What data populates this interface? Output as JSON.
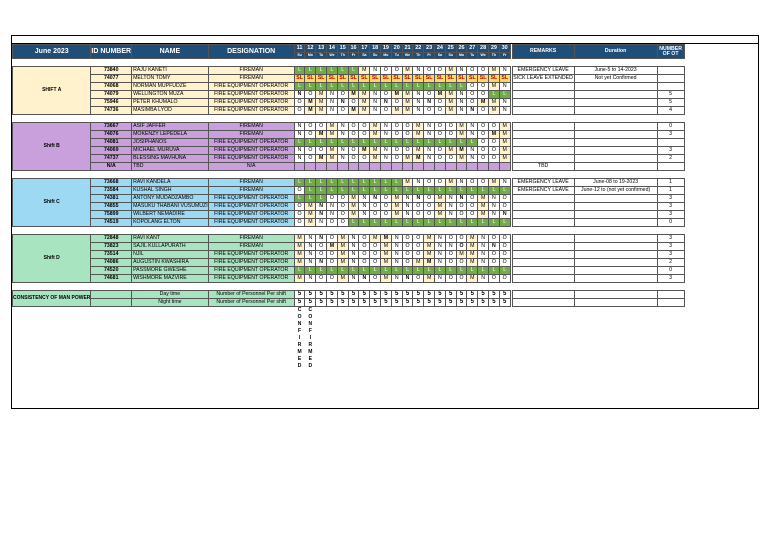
{
  "header": {
    "month": "June 2023",
    "id_col": "ID NUMBER",
    "name_col": "NAME",
    "designation_col": "DESIGNATION",
    "days": [
      "11",
      "12",
      "13",
      "14",
      "15",
      "16",
      "17",
      "18",
      "19",
      "20",
      "21",
      "22",
      "23",
      "24",
      "25",
      "26",
      "27",
      "28",
      "29",
      "30"
    ],
    "weekdays": [
      "Su",
      "Mo",
      "Tu",
      "We",
      "Th",
      "Fr",
      "Sa",
      "Su",
      "Mo",
      "Tu",
      "We",
      "Th",
      "Fr",
      "Sa",
      "Su",
      "Mo",
      "Tu",
      "We",
      "Th",
      "Fr"
    ],
    "remarks_col": "REMARKS",
    "duration_col": "Duration",
    "ot_col": "NUMBER OF OT"
  },
  "groups": [
    {
      "name": "SHIFT A",
      "id_color": "#fff2cc",
      "name_color": "#fff2cc",
      "desig_color": "#fff2cc",
      "label_color": "#fff2cc",
      "rows": [
        {
          "id": "73840",
          "name": "RAJU KANETI",
          "desig": "FIREMAN",
          "codes": [
            "L",
            "L",
            "L",
            "L",
            "L",
            "L",
            "M",
            "N",
            "O",
            "O",
            "M",
            "N",
            "O",
            "O",
            "M",
            "N",
            "O",
            "O",
            "M",
            "N"
          ],
          "remarks": "EMERGENCY LEAVE",
          "duration": "June-5 to 14-2023",
          "ot": ""
        },
        {
          "id": "74077",
          "name": "MELTON TOMY",
          "desig": "FIREMAN",
          "codes": [
            "SL",
            "SL",
            "SL",
            "SL",
            "SL",
            "SL",
            "SL",
            "SL",
            "SL",
            "SL",
            "SL",
            "SL",
            "SL",
            "SL",
            "SL",
            "SL",
            "SL",
            "SL",
            "SL",
            "SL"
          ],
          "remarks": "SICK LEAVE EXTENDED",
          "duration": "Not yet Confirmed",
          "ot": ""
        },
        {
          "id": "74068",
          "name": "NORMAN MUPFUDZE",
          "desig": "FIRE EQUIPMENT OPERATOR",
          "codes": [
            "L",
            "L",
            "L",
            "L",
            "L",
            "L",
            "L",
            "L",
            "L",
            "L",
            "L",
            "L",
            "L",
            "L",
            "L",
            "L",
            "O",
            "O",
            "M",
            "N"
          ],
          "remarks": "",
          "duration": "",
          "ot": ""
        },
        {
          "id": "74079",
          "name": "WELLINGTON MUZA",
          "desig": "FIRE EQUIPMENT OPERATOR",
          "codes": [
            "N",
            "O",
            "M",
            "N",
            "O",
            "M",
            "M",
            "N",
            "O",
            "M",
            "M",
            "N",
            "O",
            "M",
            "M",
            "N",
            "O",
            "O",
            "L",
            "L"
          ],
          "remarks": "",
          "duration": "",
          "ot": "5"
        },
        {
          "id": "75946",
          "name": "PETER KHUMALO",
          "desig": "FIRE EQUIPMENT OPERATOR",
          "codes": [
            "O",
            "M",
            "M",
            "N",
            "N",
            "O",
            "M",
            "N",
            "N",
            "O",
            "M",
            "N",
            "N",
            "O",
            "M",
            "N",
            "O",
            "M",
            "M",
            "N"
          ],
          "remarks": "",
          "duration": "",
          "ot": "5"
        },
        {
          "id": "74736",
          "name": "MASIMBA LYOD",
          "desig": "FIRE EQUIPMENT OPERATOR",
          "codes": [
            "O",
            "M",
            "M",
            "N",
            "O",
            "M",
            "M",
            "N",
            "O",
            "M",
            "M",
            "N",
            "O",
            "O",
            "M",
            "N",
            "N",
            "O",
            "M",
            "N"
          ],
          "remarks": "",
          "duration": "",
          "ot": "4"
        }
      ]
    },
    {
      "name": "Shift B",
      "id_color": "#c9a0dc",
      "name_color": "#c9a0dc",
      "desig_color": "#c9a0dc",
      "label_color": "#c9a0dc",
      "rows": [
        {
          "id": "73667",
          "name": "ASIF JAFFER",
          "desig": "FIREMAN",
          "codes": [
            "N",
            "O",
            "O",
            "M",
            "N",
            "O",
            "O",
            "M",
            "N",
            "O",
            "O",
            "M",
            "N",
            "O",
            "O",
            "M",
            "N",
            "O",
            "O",
            "M"
          ],
          "remarks": "",
          "duration": "",
          "ot": "0"
        },
        {
          "id": "74076",
          "name": "MOKENZY LEPEDELA",
          "desig": "FIREMAN",
          "codes": [
            "N",
            "O",
            "M",
            "M",
            "N",
            "O",
            "O",
            "M",
            "N",
            "O",
            "O",
            "M",
            "N",
            "O",
            "O",
            "M",
            "N",
            "O",
            "M",
            "M"
          ],
          "remarks": "",
          "duration": "",
          "ot": "3"
        },
        {
          "id": "74081",
          "name": "JOSIPHANOS",
          "desig": "FIRE EQUIPMENT OPERATOR",
          "codes": [
            "L",
            "L",
            "L",
            "L",
            "L",
            "L",
            "L",
            "L",
            "L",
            "L",
            "L",
            "L",
            "L",
            "L",
            "L",
            "L",
            "L",
            "O",
            "O",
            "M"
          ],
          "remarks": "",
          "duration": "",
          "ot": ""
        },
        {
          "id": "74069",
          "name": "MICHAEL MURUVA",
          "desig": "FIRE EQUIPMENT OPERATOR",
          "codes": [
            "N",
            "O",
            "O",
            "M",
            "N",
            "O",
            "M",
            "M",
            "N",
            "O",
            "O",
            "M",
            "N",
            "O",
            "M",
            "M",
            "N",
            "O",
            "O",
            "M"
          ],
          "remarks": "",
          "duration": "",
          "ot": "3"
        },
        {
          "id": "74737",
          "name": "BLESSING MAVHUNA",
          "desig": "FIRE EQUIPMENT OPERATOR",
          "codes": [
            "N",
            "O",
            "M",
            "M",
            "N",
            "O",
            "O",
            "M",
            "N",
            "O",
            "M",
            "M",
            "N",
            "O",
            "O",
            "M",
            "N",
            "O",
            "O",
            "M"
          ],
          "remarks": "",
          "duration": "",
          "ot": "2"
        },
        {
          "id": "N/A",
          "name": "TBD",
          "desig": "N/A",
          "codes": [
            "",
            "",
            "",
            "",
            "",
            "",
            "",
            "",
            "",
            "",
            "",
            "",
            "",
            "",
            "",
            "",
            "",
            "",
            "",
            ""
          ],
          "remarks": "TBD",
          "duration": "",
          "ot": ""
        }
      ]
    },
    {
      "name": "Shift C",
      "id_color": "#9dd9f3",
      "name_color": "#9dd9f3",
      "desig_color": "#9dd9f3",
      "label_color": "#9dd9f3",
      "rows": [
        {
          "id": "73668",
          "name": "RAVI KANDELA",
          "desig": "FIREMAN",
          "codes": [
            "L",
            "L",
            "L",
            "L",
            "L",
            "L",
            "L",
            "L",
            "L",
            "L",
            "M",
            "N",
            "O",
            "O",
            "M",
            "N",
            "O",
            "O",
            "M",
            "N"
          ],
          "remarks": "EMERGENCY LEAVE",
          "duration": "June-08 to 19-2023",
          "ot": "1"
        },
        {
          "id": "73584",
          "name": "KUSHAL SINGH",
          "desig": "FIREMAN",
          "codes": [
            "O",
            "L",
            "L",
            "L",
            "L",
            "L",
            "L",
            "L",
            "L",
            "L",
            "L",
            "L",
            "L",
            "L",
            "L",
            "L",
            "L",
            "L",
            "L",
            "L"
          ],
          "remarks": "EMERGENCY LEAVE",
          "duration": "June-12 to (not yet confirmed)",
          "ot": "1"
        },
        {
          "id": "74381",
          "name": "ANTONY MUDADZAMBO",
          "desig": "FIRE EQUIPMENT OPERATOR",
          "codes": [
            "L",
            "L",
            "L",
            "O",
            "O",
            "M",
            "N",
            "N",
            "O",
            "M",
            "N",
            "N",
            "O",
            "M",
            "N",
            "N",
            "O",
            "M",
            "N",
            "O"
          ],
          "remarks": "",
          "duration": "",
          "ot": "3"
        },
        {
          "id": "74855",
          "name": "MASUKU THABANI VUSUMUZI",
          "desig": "FIRE EQUIPMENT OPERATOR",
          "codes": [
            "O",
            "M",
            "N",
            "N",
            "O",
            "M",
            "N",
            "O",
            "O",
            "M",
            "N",
            "O",
            "O",
            "M",
            "N",
            "O",
            "O",
            "M",
            "N",
            "O"
          ],
          "remarks": "",
          "duration": "",
          "ot": "3"
        },
        {
          "id": "75899",
          "name": "WILBERT NEMADIRE",
          "desig": "FIRE EQUIPMENT OPERATOR",
          "codes": [
            "O",
            "M",
            "N",
            "N",
            "O",
            "M",
            "N",
            "O",
            "O",
            "M",
            "N",
            "O",
            "O",
            "M",
            "N",
            "O",
            "O",
            "M",
            "N",
            "N"
          ],
          "remarks": "",
          "duration": "",
          "ot": "3"
        },
        {
          "id": "74519",
          "name": "KOPOLANG ELTON",
          "desig": "FIRE EQUIPMENT OPERATOR",
          "codes": [
            "O",
            "M",
            "N",
            "O",
            "O",
            "L",
            "L",
            "L",
            "L",
            "L",
            "L",
            "L",
            "L",
            "L",
            "L",
            "L",
            "L",
            "L",
            "L",
            "L"
          ],
          "remarks": "",
          "duration": "",
          "ot": "0"
        }
      ]
    },
    {
      "name": "Shift D",
      "id_color": "#a8e4c0",
      "name_color": "#a8e4c0",
      "desig_color": "#a8e4c0",
      "label_color": "#a8e4c0",
      "rows": [
        {
          "id": "72848",
          "name": "RAVI KANT",
          "desig": "FIREMAN",
          "codes": [
            "M",
            "N",
            "N",
            "O",
            "M",
            "N",
            "O",
            "M",
            "M",
            "N",
            "O",
            "O",
            "M",
            "N",
            "O",
            "O",
            "M",
            "N",
            "O",
            "O"
          ],
          "remarks": "",
          "duration": "",
          "ot": "3"
        },
        {
          "id": "73823",
          "name": "SAJIL KULLAPURATH",
          "desig": "FIREMAN",
          "codes": [
            "M",
            "N",
            "O",
            "M",
            "M",
            "N",
            "O",
            "O",
            "M",
            "N",
            "O",
            "O",
            "M",
            "N",
            "N",
            "O",
            "M",
            "N",
            "N",
            "O"
          ],
          "remarks": "",
          "duration": "",
          "ot": "3"
        },
        {
          "id": "73514",
          "name": "NJIL",
          "desig": "FIRE EQUIPMENT OPERATOR",
          "codes": [
            "M",
            "N",
            "O",
            "O",
            "M",
            "N",
            "O",
            "O",
            "M",
            "N",
            "O",
            "O",
            "M",
            "N",
            "O",
            "M",
            "M",
            "N",
            "O",
            "O"
          ],
          "remarks": "",
          "duration": "",
          "ot": "3"
        },
        {
          "id": "74086",
          "name": "AUGUSTIN KWASHIRA",
          "desig": "FIRE EQUIPMENT OPERATOR",
          "codes": [
            "M",
            "N",
            "N",
            "O",
            "M",
            "N",
            "O",
            "O",
            "M",
            "N",
            "O",
            "M",
            "M",
            "N",
            "O",
            "O",
            "M",
            "N",
            "O",
            "O"
          ],
          "remarks": "",
          "duration": "",
          "ot": "2"
        },
        {
          "id": "74520",
          "name": "PASSMORE GWESHE",
          "desig": "FIRE EQUIPMENT OPERATOR",
          "codes": [
            "L",
            "L",
            "L",
            "L",
            "L",
            "L",
            "L",
            "L",
            "L",
            "L",
            "L",
            "L",
            "L",
            "L",
            "L",
            "L",
            "L",
            "L",
            "L",
            "L"
          ],
          "remarks": "",
          "duration": "",
          "ot": "0"
        },
        {
          "id": "74681",
          "name": "WISHMORE MAZVIRE",
          "desig": "FIRE EQUIPMENT OPERATOR",
          "codes": [
            "M",
            "N",
            "O",
            "O",
            "M",
            "N",
            "N",
            "O",
            "M",
            "N",
            "N",
            "O",
            "M",
            "N",
            "O",
            "O",
            "M",
            "N",
            "O",
            "O"
          ],
          "remarks": "",
          "duration": "",
          "ot": "3"
        }
      ]
    }
  ],
  "consistency": {
    "label": "CONSISTENCY OF MAN POWER",
    "row1_name": "Day time",
    "row1_desig": "Number of Personnel Per shift",
    "row2_name": "Night time",
    "row2_desig": "Number of Personnel Per shift",
    "counts": [
      "5",
      "5",
      "5",
      "5",
      "5",
      "5",
      "5",
      "5",
      "5",
      "5",
      "5",
      "5",
      "5",
      "5",
      "5",
      "5",
      "5",
      "5",
      "5",
      "5"
    ],
    "confirmed": [
      "C",
      "O",
      "N",
      "F",
      "I",
      "R",
      "M",
      "E",
      "D"
    ]
  },
  "bold_cells": [
    [
      0,
      3,
      0
    ],
    [
      0,
      3,
      5
    ],
    [
      0,
      3,
      9
    ],
    [
      0,
      3,
      13
    ],
    [
      0,
      4,
      1
    ],
    [
      0,
      4,
      4
    ],
    [
      0,
      4,
      8
    ],
    [
      0,
      4,
      12
    ],
    [
      0,
      4,
      17
    ],
    [
      0,
      5,
      1
    ],
    [
      0,
      5,
      5
    ],
    [
      0,
      5,
      16
    ],
    [
      1,
      1,
      2
    ],
    [
      1,
      1,
      18
    ],
    [
      1,
      3,
      6
    ],
    [
      1,
      3,
      15
    ],
    [
      1,
      4,
      2
    ],
    [
      1,
      4,
      11
    ],
    [
      2,
      2,
      7
    ],
    [
      2,
      2,
      11
    ],
    [
      2,
      2,
      15
    ],
    [
      2,
      3,
      2
    ],
    [
      2,
      4,
      2
    ],
    [
      2,
      4,
      19
    ],
    [
      3,
      0,
      2
    ],
    [
      3,
      0,
      8
    ],
    [
      3,
      1,
      3
    ],
    [
      3,
      1,
      15
    ],
    [
      3,
      1,
      18
    ],
    [
      3,
      3,
      2
    ],
    [
      3,
      3,
      12
    ],
    [
      3,
      5,
      6
    ],
    [
      3,
      5,
      10
    ]
  ]
}
